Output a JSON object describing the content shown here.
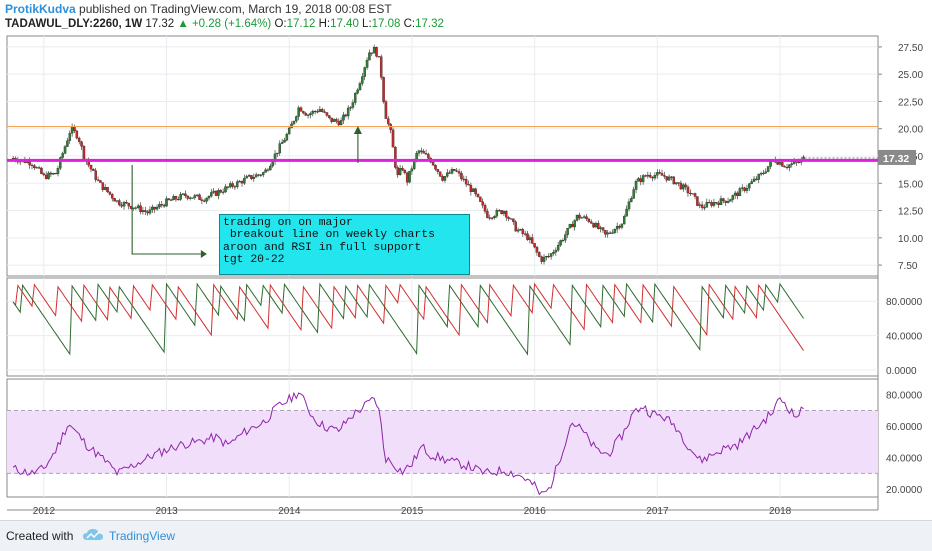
{
  "header": {
    "author": "ProtikKudva",
    "published": "published on TradingView.com, March 19, 2018 00:08 EST",
    "symbol": "TADAWUL_DLY:2260, 1W",
    "last": "17.32",
    "change": "▲ +0.28 (+1.64%)",
    "o_label": "O:",
    "o_value": "17.12",
    "h_label": "H:",
    "h_value": "17.40",
    "l_label": "L:",
    "l_value": "17.08",
    "c_label": "C:",
    "c_value": "17.32"
  },
  "annotation": {
    "text": "trading on on major\n breakout line on weekly charts\naroon and RSI in full support\ntgt 20-22"
  },
  "footer": {
    "created_with": "Created with",
    "brand": "TradingView"
  },
  "colors": {
    "up_candle": "#2e7d32",
    "down_candle": "#c62828",
    "support_line": "#e020e0",
    "resistance_line": "#f5a55a",
    "aroon_up": "#2e6b2e",
    "aroon_down": "#d32f2f",
    "rsi_line": "#8e24aa",
    "rsi_band": "#f1defa",
    "annotation_bg": "#22e5ee",
    "price_label_bg": "#8a8a8a"
  },
  "chart_data": {
    "type": "candlestick",
    "timeframe": "1W",
    "x_ticks": [
      "2012",
      "2013",
      "2014",
      "2015",
      "2016",
      "2017",
      "2018"
    ],
    "last_price_label": "17.32",
    "price_panel": {
      "ylim": [
        6.5,
        28.5
      ],
      "y_ticks": [
        "7.50",
        "10.00",
        "12.50",
        "15.00",
        "17.50",
        "20.00",
        "22.50",
        "25.00",
        "27.50"
      ],
      "horizontal_lines": [
        {
          "name": "breakout line",
          "value": 17.1,
          "color": "#e020e0"
        },
        {
          "name": "resistance",
          "value": 20.2,
          "color": "#f5a55a"
        }
      ],
      "series": [
        {
          "t": 2011.75,
          "close": 17.3
        },
        {
          "t": 2011.9,
          "close": 16.9
        },
        {
          "t": 2012.0,
          "close": 15.6
        },
        {
          "t": 2012.1,
          "close": 15.9
        },
        {
          "t": 2012.22,
          "close": 20.0
        },
        {
          "t": 2012.28,
          "close": 19.3
        },
        {
          "t": 2012.33,
          "close": 17.4
        },
        {
          "t": 2012.45,
          "close": 15.0
        },
        {
          "t": 2012.6,
          "close": 13.3
        },
        {
          "t": 2012.75,
          "close": 12.8
        },
        {
          "t": 2012.85,
          "close": 12.3
        },
        {
          "t": 2013.0,
          "close": 13.3
        },
        {
          "t": 2013.15,
          "close": 13.9
        },
        {
          "t": 2013.3,
          "close": 13.6
        },
        {
          "t": 2013.5,
          "close": 14.6
        },
        {
          "t": 2013.65,
          "close": 15.4
        },
        {
          "t": 2013.8,
          "close": 16.0
        },
        {
          "t": 2013.9,
          "close": 17.9
        },
        {
          "t": 2014.0,
          "close": 19.8
        },
        {
          "t": 2014.08,
          "close": 22.0
        },
        {
          "t": 2014.15,
          "close": 21.3
        },
        {
          "t": 2014.25,
          "close": 21.8
        },
        {
          "t": 2014.33,
          "close": 20.8
        },
        {
          "t": 2014.42,
          "close": 20.6
        },
        {
          "t": 2014.5,
          "close": 22.0
        },
        {
          "t": 2014.58,
          "close": 24.5
        },
        {
          "t": 2014.65,
          "close": 27.0
        },
        {
          "t": 2014.7,
          "close": 27.3
        },
        {
          "t": 2014.74,
          "close": 26.0
        },
        {
          "t": 2014.78,
          "close": 21.5
        },
        {
          "t": 2014.83,
          "close": 19.5
        },
        {
          "t": 2014.88,
          "close": 15.5
        },
        {
          "t": 2014.92,
          "close": 16.5
        },
        {
          "t": 2014.96,
          "close": 15.2
        },
        {
          "t": 2015.05,
          "close": 18.0
        },
        {
          "t": 2015.15,
          "close": 17.2
        },
        {
          "t": 2015.25,
          "close": 15.5
        },
        {
          "t": 2015.35,
          "close": 16.2
        },
        {
          "t": 2015.5,
          "close": 14.2
        },
        {
          "t": 2015.62,
          "close": 12.0
        },
        {
          "t": 2015.75,
          "close": 12.5
        },
        {
          "t": 2015.85,
          "close": 10.8
        },
        {
          "t": 2015.95,
          "close": 10.0
        },
        {
          "t": 2016.05,
          "close": 8.0
        },
        {
          "t": 2016.12,
          "close": 8.3
        },
        {
          "t": 2016.22,
          "close": 9.8
        },
        {
          "t": 2016.35,
          "close": 12.0
        },
        {
          "t": 2016.45,
          "close": 11.6
        },
        {
          "t": 2016.58,
          "close": 10.2
        },
        {
          "t": 2016.72,
          "close": 11.5
        },
        {
          "t": 2016.82,
          "close": 15.0
        },
        {
          "t": 2016.92,
          "close": 15.8
        },
        {
          "t": 2017.05,
          "close": 15.7
        },
        {
          "t": 2017.15,
          "close": 15.1
        },
        {
          "t": 2017.28,
          "close": 14.0
        },
        {
          "t": 2017.35,
          "close": 12.8
        },
        {
          "t": 2017.45,
          "close": 13.2
        },
        {
          "t": 2017.58,
          "close": 13.5
        },
        {
          "t": 2017.72,
          "close": 14.6
        },
        {
          "t": 2017.85,
          "close": 15.8
        },
        {
          "t": 2017.95,
          "close": 17.2
        },
        {
          "t": 2018.05,
          "close": 16.6
        },
        {
          "t": 2018.15,
          "close": 16.9
        },
        {
          "t": 2018.2,
          "close": 17.32
        }
      ]
    },
    "aroon_panel": {
      "ylim": [
        0,
        100
      ],
      "y_ticks": [
        "0.0000",
        "40.0000",
        "80.0000"
      ],
      "series_up_peaks": [
        2011.82,
        2012.22,
        2012.44,
        2012.6,
        2013.0,
        2013.25,
        2013.43,
        2013.65,
        2013.78,
        2013.96,
        2014.25,
        2014.45,
        2014.65,
        2015.05,
        2015.3,
        2015.55,
        2015.95,
        2016.3,
        2016.55,
        2016.75,
        2016.98,
        2017.35,
        2017.55,
        2017.72,
        2017.88,
        2018.0,
        2018.2
      ],
      "series_down_peaks": [
        2011.78,
        2011.92,
        2012.1,
        2012.32,
        2012.52,
        2012.72,
        2012.88,
        2013.08,
        2013.38,
        2013.58,
        2013.84,
        2014.1,
        2014.35,
        2014.55,
        2014.78,
        2014.9,
        2015.1,
        2015.4,
        2015.63,
        2015.82,
        2016.0,
        2016.15,
        2016.42,
        2016.65,
        2016.88,
        2017.12,
        2017.42,
        2017.62,
        2017.82
      ]
    },
    "rsi_panel": {
      "ylim": [
        15,
        90
      ],
      "y_ticks": [
        "20.0000",
        "40.0000",
        "60.0000",
        "80.0000"
      ],
      "band": [
        30,
        70
      ],
      "series": [
        {
          "t": 2011.75,
          "v": 33
        },
        {
          "t": 2011.9,
          "v": 30
        },
        {
          "t": 2012.0,
          "v": 33
        },
        {
          "t": 2012.1,
          "v": 45
        },
        {
          "t": 2012.2,
          "v": 62
        },
        {
          "t": 2012.35,
          "v": 48
        },
        {
          "t": 2012.5,
          "v": 38
        },
        {
          "t": 2012.6,
          "v": 30
        },
        {
          "t": 2012.75,
          "v": 36
        },
        {
          "t": 2012.9,
          "v": 42
        },
        {
          "t": 2013.0,
          "v": 45
        },
        {
          "t": 2013.1,
          "v": 48
        },
        {
          "t": 2013.25,
          "v": 50
        },
        {
          "t": 2013.4,
          "v": 53
        },
        {
          "t": 2013.5,
          "v": 48
        },
        {
          "t": 2013.65,
          "v": 57
        },
        {
          "t": 2013.8,
          "v": 63
        },
        {
          "t": 2013.9,
          "v": 72
        },
        {
          "t": 2014.0,
          "v": 77
        },
        {
          "t": 2014.08,
          "v": 82
        },
        {
          "t": 2014.12,
          "v": 76
        },
        {
          "t": 2014.2,
          "v": 65
        },
        {
          "t": 2014.28,
          "v": 60
        },
        {
          "t": 2014.4,
          "v": 57
        },
        {
          "t": 2014.5,
          "v": 66
        },
        {
          "t": 2014.6,
          "v": 72
        },
        {
          "t": 2014.7,
          "v": 78
        },
        {
          "t": 2014.74,
          "v": 67
        },
        {
          "t": 2014.78,
          "v": 40
        },
        {
          "t": 2014.85,
          "v": 36
        },
        {
          "t": 2014.92,
          "v": 31
        },
        {
          "t": 2015.0,
          "v": 36
        },
        {
          "t": 2015.08,
          "v": 47
        },
        {
          "t": 2015.15,
          "v": 42
        },
        {
          "t": 2015.3,
          "v": 38
        },
        {
          "t": 2015.45,
          "v": 35
        },
        {
          "t": 2015.6,
          "v": 30
        },
        {
          "t": 2015.75,
          "v": 32
        },
        {
          "t": 2015.9,
          "v": 28
        },
        {
          "t": 2016.0,
          "v": 22
        },
        {
          "t": 2016.05,
          "v": 16
        },
        {
          "t": 2016.12,
          "v": 20
        },
        {
          "t": 2016.2,
          "v": 38
        },
        {
          "t": 2016.3,
          "v": 63
        },
        {
          "t": 2016.38,
          "v": 58
        },
        {
          "t": 2016.5,
          "v": 45
        },
        {
          "t": 2016.6,
          "v": 42
        },
        {
          "t": 2016.72,
          "v": 55
        },
        {
          "t": 2016.8,
          "v": 68
        },
        {
          "t": 2016.88,
          "v": 73
        },
        {
          "t": 2016.95,
          "v": 68
        },
        {
          "t": 2017.05,
          "v": 66
        },
        {
          "t": 2017.15,
          "v": 60
        },
        {
          "t": 2017.25,
          "v": 48
        },
        {
          "t": 2017.35,
          "v": 38
        },
        {
          "t": 2017.45,
          "v": 42
        },
        {
          "t": 2017.55,
          "v": 46
        },
        {
          "t": 2017.65,
          "v": 48
        },
        {
          "t": 2017.75,
          "v": 55
        },
        {
          "t": 2017.85,
          "v": 62
        },
        {
          "t": 2017.95,
          "v": 70
        },
        {
          "t": 2018.0,
          "v": 78
        },
        {
          "t": 2018.06,
          "v": 73
        },
        {
          "t": 2018.12,
          "v": 66
        },
        {
          "t": 2018.2,
          "v": 71
        }
      ]
    }
  }
}
